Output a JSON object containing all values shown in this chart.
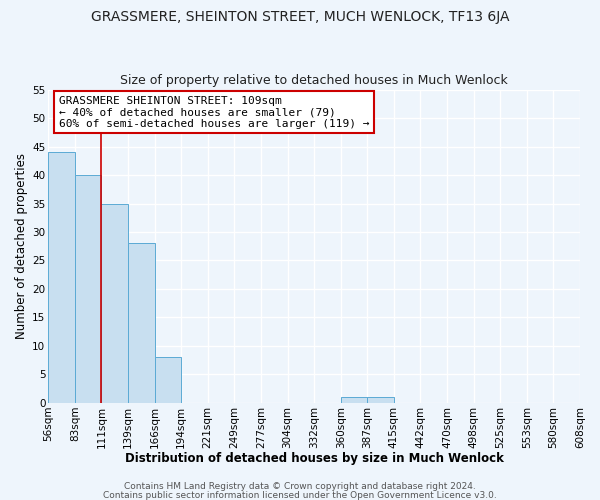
{
  "title": "GRASSMERE, SHEINTON STREET, MUCH WENLOCK, TF13 6JA",
  "subtitle": "Size of property relative to detached houses in Much Wenlock",
  "xlabel": "Distribution of detached houses by size in Much Wenlock",
  "ylabel": "Number of detached properties",
  "bin_labels": [
    "56sqm",
    "83sqm",
    "111sqm",
    "139sqm",
    "166sqm",
    "194sqm",
    "221sqm",
    "249sqm",
    "277sqm",
    "304sqm",
    "332sqm",
    "360sqm",
    "387sqm",
    "415sqm",
    "442sqm",
    "470sqm",
    "498sqm",
    "525sqm",
    "553sqm",
    "580sqm",
    "608sqm"
  ],
  "bar_values": [
    44,
    40,
    35,
    28,
    8,
    0,
    0,
    0,
    0,
    0,
    0,
    1,
    1,
    0,
    0,
    0,
    0,
    0,
    0,
    0
  ],
  "bar_color": "#c8dff0",
  "bar_edge_color": "#5baad4",
  "vline_x_index": 2,
  "vline_color": "#cc0000",
  "annotation_text": "GRASSMERE SHEINTON STREET: 109sqm\n← 40% of detached houses are smaller (79)\n60% of semi-detached houses are larger (119) →",
  "annotation_box_color": "#ffffff",
  "annotation_box_edge": "#cc0000",
  "ylim": [
    0,
    55
  ],
  "yticks": [
    0,
    5,
    10,
    15,
    20,
    25,
    30,
    35,
    40,
    45,
    50,
    55
  ],
  "footer1": "Contains HM Land Registry data © Crown copyright and database right 2024.",
  "footer2": "Contains public sector information licensed under the Open Government Licence v3.0.",
  "background_color": "#eef5fc",
  "grid_color": "#ffffff",
  "title_fontsize": 10,
  "subtitle_fontsize": 9,
  "axis_label_fontsize": 8.5,
  "tick_fontsize": 7.5,
  "annotation_fontsize": 8,
  "footer_fontsize": 6.5
}
